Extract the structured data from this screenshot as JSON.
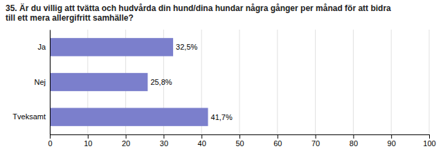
{
  "chart_data": {
    "type": "bar",
    "orientation": "horizontal",
    "title": "35. Är du villig att tvätta och hudvårda din hund/dina hundar några gånger per månad för att bidra\ntill ett mera allergifritt samhälle?",
    "categories": [
      "Tveksamt",
      "Nej",
      "Ja"
    ],
    "values": [
      41.7,
      25.8,
      32.5
    ],
    "value_labels": [
      "41,7%",
      "25,8%",
      "32,5%"
    ],
    "data_labels": true,
    "color": "#7b7fcc",
    "xlim": [
      0,
      100
    ],
    "xticks": [
      0,
      10,
      20,
      30,
      40,
      50,
      60,
      70,
      80,
      90,
      100
    ],
    "grid": true
  }
}
